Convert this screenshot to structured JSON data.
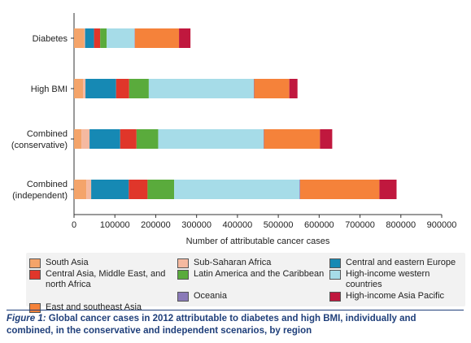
{
  "chart_data": {
    "type": "bar",
    "orientation": "horizontal",
    "stacked": true,
    "categories": [
      "Diabetes",
      "High BMI",
      "Combined\n(conservative)",
      "Combined\n(independent)"
    ],
    "xlabel": "Number of attributable cancer cases",
    "xlim": [
      0,
      900000
    ],
    "xticks": [
      0,
      100000,
      200000,
      300000,
      400000,
      500000,
      600000,
      700000,
      800000,
      900000
    ],
    "xtick_labels": [
      "0",
      "100000",
      "200000",
      "300000",
      "400000",
      "500000",
      "600000",
      "700000",
      "800000",
      "900000"
    ],
    "grid": false,
    "legend_position": "bottom",
    "series": [
      {
        "name": "South Asia",
        "color": "#f4a46a",
        "values": [
          25000,
          22000,
          18000,
          30000
        ]
      },
      {
        "name": "Sub-Saharan Africa",
        "color": "#f5b9a0",
        "values": [
          2000,
          6000,
          20000,
          12000
        ]
      },
      {
        "name": "Central and eastern Europe",
        "color": "#1689b4",
        "values": [
          22000,
          75000,
          75000,
          92000
        ]
      },
      {
        "name": "Central Asia, Middle East, and north Africa",
        "color": "#e0362a",
        "values": [
          15000,
          32000,
          40000,
          46000
        ]
      },
      {
        "name": "Latin America and the Caribbean",
        "color": "#5aab3c",
        "values": [
          16000,
          48000,
          53000,
          65000
        ]
      },
      {
        "name": "High-income western countries",
        "color": "#a6dce8",
        "values": [
          68000,
          257000,
          258000,
          307000
        ]
      },
      {
        "name": "Oceania",
        "color": "#8a7ab8",
        "values": [
          1000,
          1000,
          1000,
          1500
        ]
      },
      {
        "name": "East and southeast Asia",
        "color": "#f5823a",
        "values": [
          108000,
          86000,
          137000,
          194000
        ]
      },
      {
        "name": "High-income Asia Pacific",
        "color": "#c0183e",
        "values": [
          28000,
          20000,
          30000,
          42000
        ]
      }
    ]
  },
  "legend": {
    "items": [
      {
        "label": "South Asia",
        "color": "#f4a46a"
      },
      {
        "label": "Sub-Saharan Africa",
        "color": "#f5b9a0"
      },
      {
        "label": "Central and eastern Europe",
        "color": "#1689b4"
      },
      {
        "label": "Central Asia, Middle East, and north Africa",
        "color": "#e0362a"
      },
      {
        "label": "Latin America and the Caribbean",
        "color": "#5aab3c"
      },
      {
        "label": "High-income western countries",
        "color": "#a6dce8"
      },
      {
        "label": "",
        "color": ""
      },
      {
        "label": "Oceania",
        "color": "#8a7ab8"
      },
      {
        "label": "High-income Asia Pacific",
        "color": "#c0183e"
      },
      {
        "label": "East and southeast Asia",
        "color": "#f5823a"
      }
    ]
  },
  "caption": {
    "label": "Figure 1:",
    "text": " Global cancer cases in 2012 attributable to diabetes and high BMI, individually and combined, in the conservative and independent scenarios, by region"
  }
}
